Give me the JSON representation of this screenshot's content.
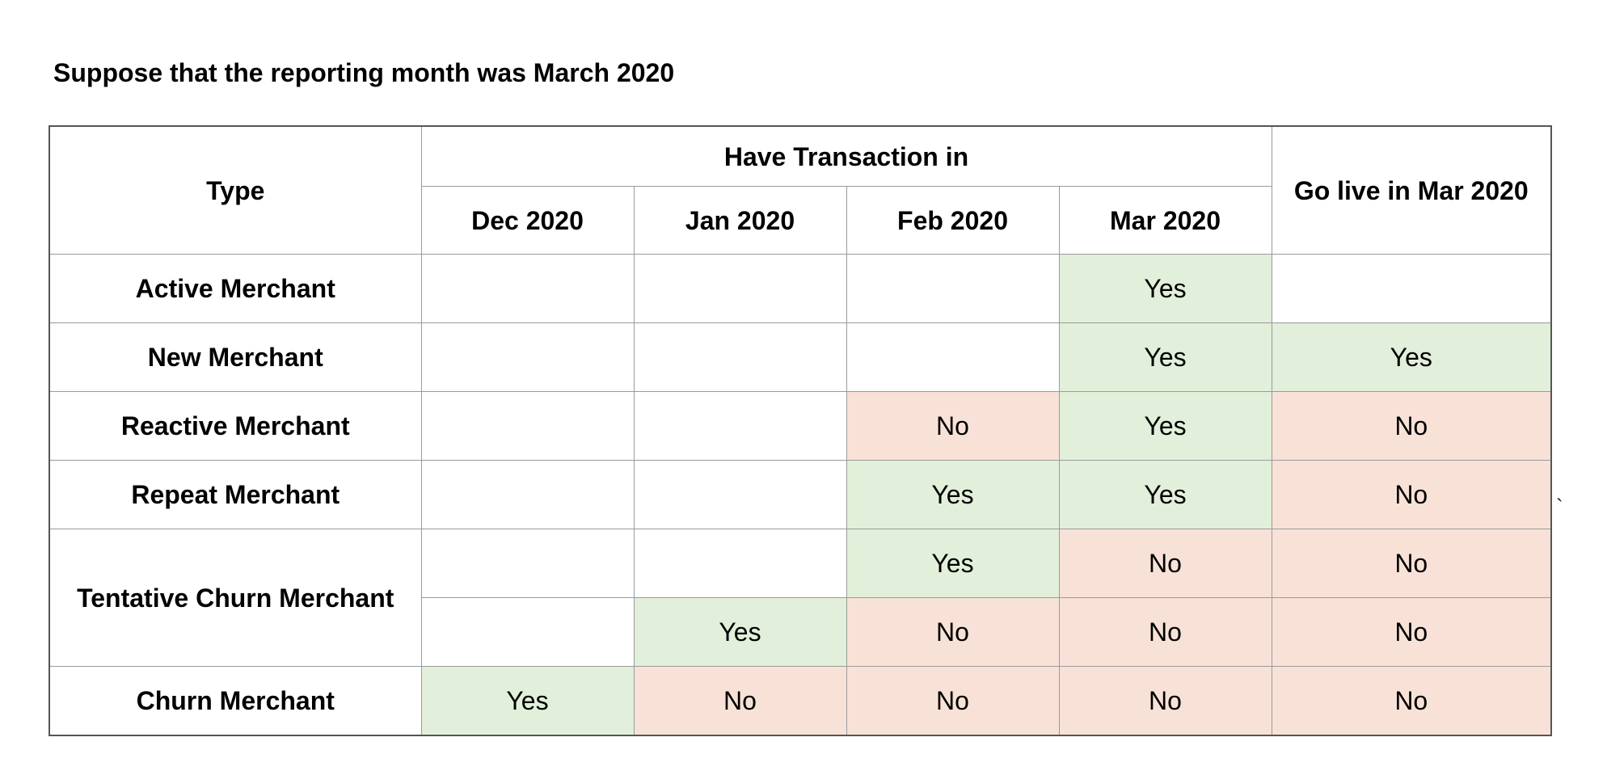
{
  "title": "Suppose that the reporting month was March 2020",
  "colors": {
    "yes": "#e2efda",
    "no": "#f8e2d7",
    "empty": "#ffffff",
    "border": "#9a9a9a"
  },
  "table": {
    "type_header": "Type",
    "group_header": "Have Transaction in",
    "golive_header": "Go live in Mar 2020",
    "months": [
      "Dec 2020",
      "Jan 2020",
      "Feb 2020",
      "Mar 2020"
    ],
    "rows": [
      {
        "type": "Active Merchant",
        "cells": [
          "",
          "",
          "",
          "Yes",
          ""
        ]
      },
      {
        "type": "New Merchant",
        "cells": [
          "",
          "",
          "",
          "Yes",
          "Yes"
        ]
      },
      {
        "type": "Reactive Merchant",
        "cells": [
          "",
          "",
          "No",
          "Yes",
          "No"
        ]
      },
      {
        "type": "Repeat Merchant",
        "cells": [
          "",
          "",
          "Yes",
          "Yes",
          "No"
        ]
      },
      {
        "type": "Tentative Churn Merchant",
        "cells": [
          "",
          "",
          "Yes",
          "No",
          "No"
        ]
      },
      {
        "type": "",
        "cells": [
          "",
          "Yes",
          "No",
          "No",
          "No"
        ]
      },
      {
        "type": "Churn Merchant",
        "cells": [
          "Yes",
          "No",
          "No",
          "No",
          "No"
        ]
      }
    ]
  },
  "stray_mark": "`"
}
